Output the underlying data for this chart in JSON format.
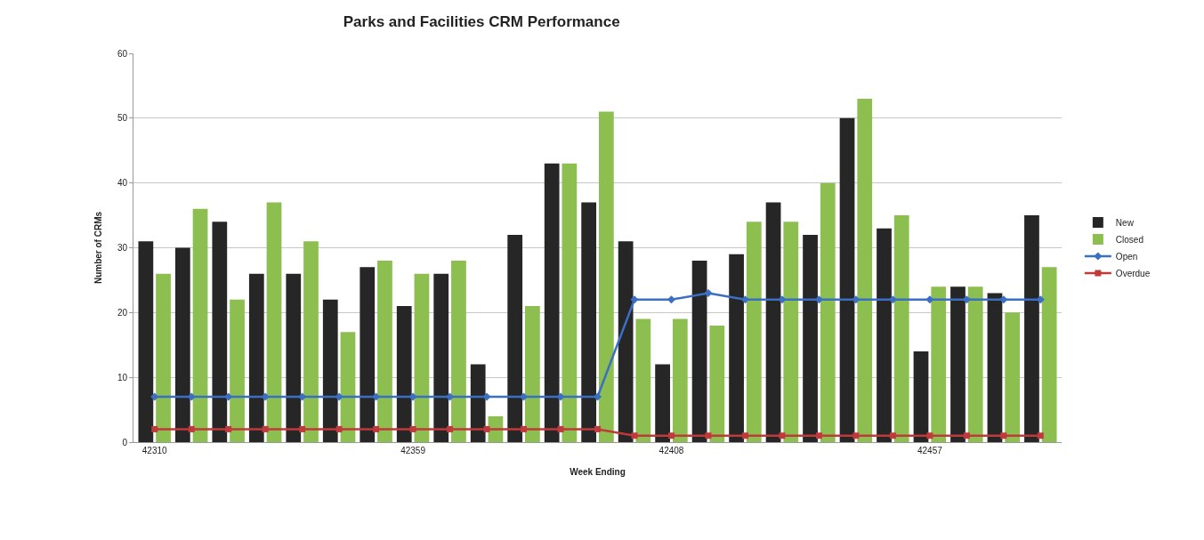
{
  "chart_data": {
    "type": "bar",
    "title": "Parks and Facilities CRM Performance",
    "xlabel": "Week Ending",
    "ylabel": "Number of CRMs",
    "x": [
      42310,
      42317,
      42324,
      42331,
      42338,
      42345,
      42352,
      42359,
      42366,
      42373,
      42380,
      42387,
      42394,
      42401,
      42408,
      42415,
      42422,
      42429,
      42436,
      42443,
      42450,
      42457,
      42464,
      42471,
      42478
    ],
    "series": [
      {
        "name": "New",
        "color": "#262626",
        "values": [
          31,
          30,
          34,
          26,
          26,
          22,
          27,
          21,
          26,
          12,
          32,
          43,
          37,
          31,
          12,
          28,
          29,
          37,
          32,
          50,
          33,
          14,
          24,
          23,
          35
        ]
      },
      {
        "name": "Closed",
        "color": "#8cbf4f",
        "values": [
          26,
          36,
          22,
          37,
          31,
          17,
          28,
          26,
          28,
          4,
          21,
          43,
          51,
          19,
          19,
          18,
          34,
          34,
          40,
          53,
          35,
          24,
          24,
          20,
          27
        ]
      },
      {
        "name": "Open",
        "type": "line",
        "color": "#3a6fc4",
        "marker": "diamond",
        "values": [
          7,
          7,
          7,
          7,
          7,
          7,
          7,
          7,
          7,
          7,
          7,
          7,
          7,
          22,
          22,
          23,
          22,
          22,
          22,
          22,
          22,
          22,
          22,
          22,
          22
        ]
      },
      {
        "name": "Overdue",
        "type": "line",
        "color": "#c0393b",
        "marker": "square",
        "values": [
          2,
          2,
          2,
          2,
          2,
          2,
          2,
          2,
          2,
          2,
          2,
          2,
          2,
          1,
          1,
          1,
          1,
          1,
          1,
          1,
          1,
          1,
          1,
          1,
          1
        ]
      }
    ],
    "xlim": [
      42306,
      42482
    ],
    "xticks": [
      42310,
      42359,
      42408,
      42457
    ],
    "ylim": [
      0,
      60
    ],
    "yticks": [
      0,
      10,
      20,
      30,
      40,
      50,
      60
    ],
    "grid": "y",
    "legend": "right",
    "line_style": "solid"
  }
}
